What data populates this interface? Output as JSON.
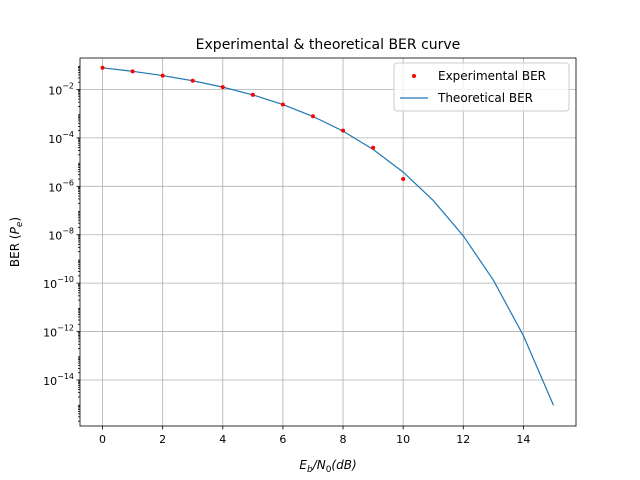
{
  "chart_data": {
    "type": "line",
    "title": "Experimental & theoretical BER curve",
    "xlabel_main": "E",
    "xlabel_sub1": "b",
    "xlabel_mid": "/N",
    "xlabel_sub2": "0",
    "xlabel_tail": "(dB)",
    "ylabel_main": "BER (",
    "ylabel_var": "P",
    "ylabel_sub": "e",
    "ylabel_tail": ")",
    "y_scale": "log",
    "xlim": [
      -0.75,
      15.75
    ],
    "ylim_log10": [
      -15.9,
      -0.7
    ],
    "x_ticks": [
      0,
      2,
      4,
      6,
      8,
      10,
      12,
      14
    ],
    "y_ticks_exp": [
      -14,
      -12,
      -10,
      -8,
      -6,
      -4,
      -2
    ],
    "grid": true,
    "legend_position": "top-right",
    "series": [
      {
        "name": "Experimental BER",
        "style": "points",
        "color": "#ff0000",
        "x": [
          0,
          1,
          2,
          3,
          4,
          5,
          6,
          7,
          8,
          9,
          10
        ],
        "y": [
          0.079,
          0.056,
          0.0375,
          0.0229,
          0.0125,
          0.006,
          0.0024,
          0.00078,
          0.0002,
          3.9e-05,
          2e-06
        ]
      },
      {
        "name": "Theoretical BER",
        "style": "line",
        "color": "#1f77b4",
        "x": [
          0,
          1,
          2,
          3,
          4,
          5,
          6,
          7,
          8,
          9,
          10,
          11,
          12,
          13,
          14,
          15
        ],
        "y": [
          0.0786,
          0.0563,
          0.0375,
          0.0229,
          0.0125,
          0.00595,
          0.00239,
          0.000773,
          0.000191,
          3.36e-05,
          3.87e-06,
          2.61e-07,
          9.02e-09,
          1.34e-10,
          6.8e-13,
          9.1e-16
        ]
      }
    ]
  }
}
